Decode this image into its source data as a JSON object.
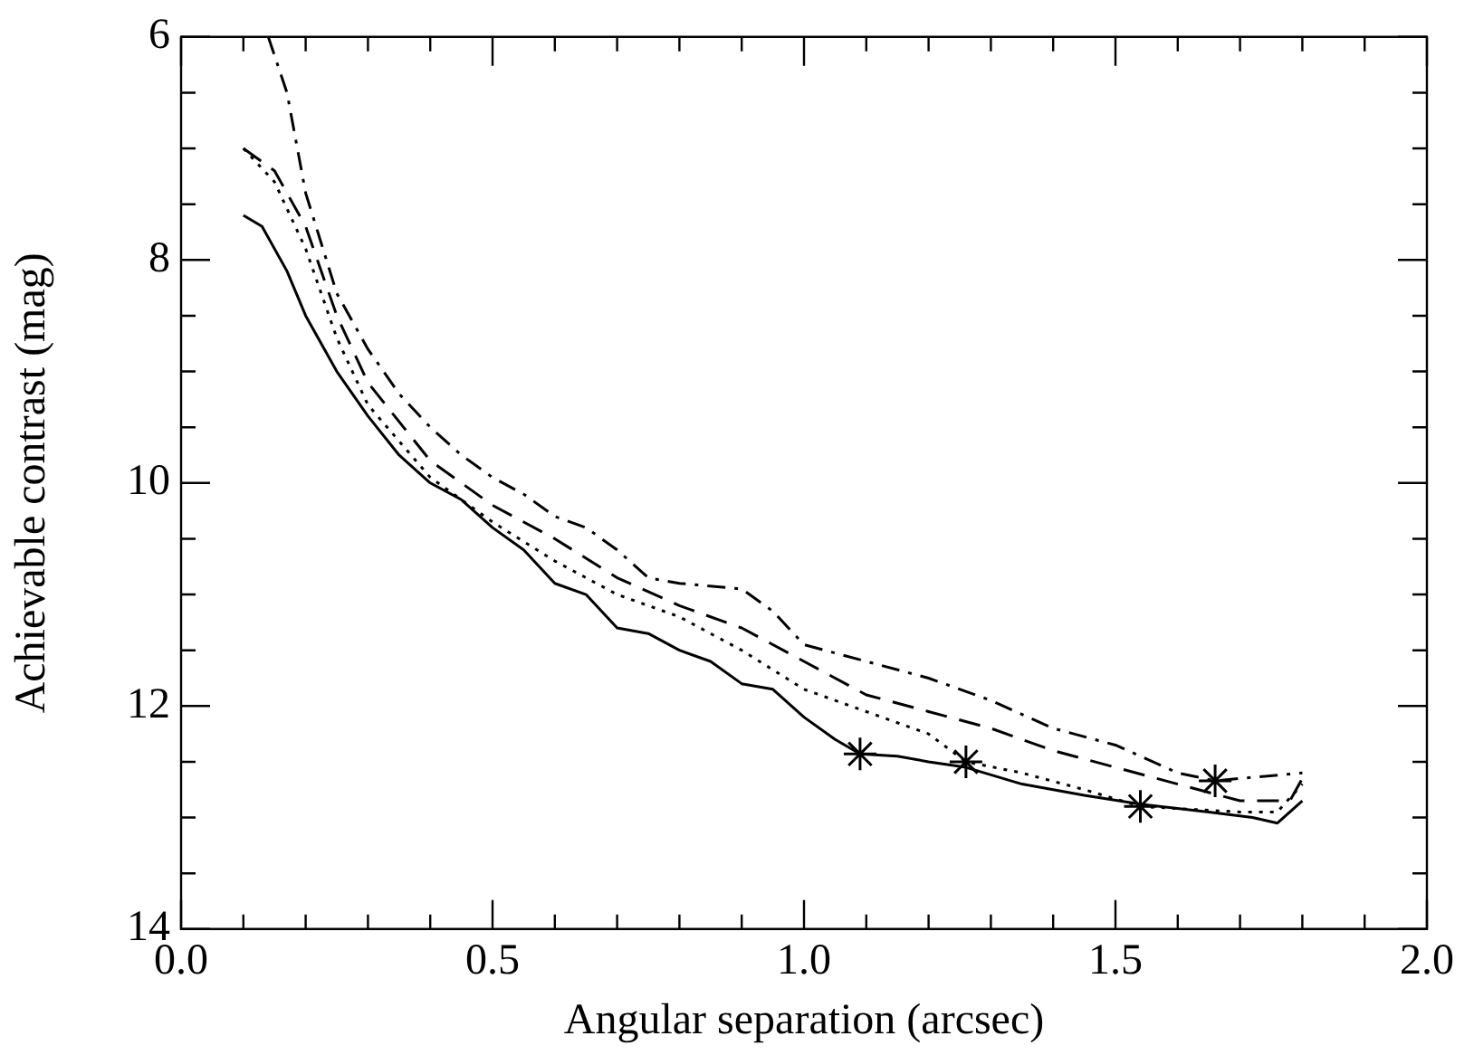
{
  "chart_data": {
    "type": "line",
    "xlabel": "Angular separation (arcsec)",
    "ylabel": "Achievable contrast (mag)",
    "xlim": [
      0,
      2
    ],
    "ylim": [
      14,
      6
    ],
    "xticks": [
      {
        "value": 0,
        "label": "0.0"
      },
      {
        "value": 0.1,
        "label": null
      },
      {
        "value": 0.2,
        "label": null
      },
      {
        "value": 0.3,
        "label": null
      },
      {
        "value": 0.4,
        "label": null
      },
      {
        "value": 0.5,
        "label": "0.5"
      },
      {
        "value": 0.6,
        "label": null
      },
      {
        "value": 0.7,
        "label": null
      },
      {
        "value": 0.8,
        "label": null
      },
      {
        "value": 0.9,
        "label": null
      },
      {
        "value": 1,
        "label": "1.0"
      },
      {
        "value": 1.1,
        "label": null
      },
      {
        "value": 1.2,
        "label": null
      },
      {
        "value": 1.3,
        "label": null
      },
      {
        "value": 1.4,
        "label": null
      },
      {
        "value": 1.5,
        "label": "1.5"
      },
      {
        "value": 1.6,
        "label": null
      },
      {
        "value": 1.7,
        "label": null
      },
      {
        "value": 1.8,
        "label": null
      },
      {
        "value": 1.9,
        "label": null
      },
      {
        "value": 2,
        "label": "2.0"
      }
    ],
    "yticks": [
      {
        "value": 6,
        "label": "6"
      },
      {
        "value": 6.5,
        "label": null
      },
      {
        "value": 7,
        "label": null
      },
      {
        "value": 7.5,
        "label": null
      },
      8,
      {
        "value": 8.5,
        "label": null
      },
      {
        "value": 9,
        "label": null
      },
      {
        "value": 9.5,
        "label": null
      },
      10,
      {
        "value": 10.5,
        "label": null
      },
      {
        "value": 11,
        "label": null
      },
      {
        "value": 11.5,
        "label": null
      },
      12,
      {
        "value": 12.5,
        "label": null
      },
      {
        "value": 13,
        "label": null
      },
      {
        "value": 13.5,
        "label": null
      },
      14
    ],
    "grid": false,
    "legend": false,
    "marker": "none",
    "series": [
      {
        "color": "#000000",
        "line_style": "solid",
        "x": [
          0.1,
          0.13,
          0.17,
          0.2,
          0.25,
          0.3,
          0.35,
          0.4,
          0.45,
          0.5,
          0.55,
          0.6,
          0.65,
          0.7,
          0.75,
          0.8,
          0.85,
          0.9,
          0.95,
          1.0,
          1.05,
          1.09,
          1.15,
          1.2,
          1.26,
          1.35,
          1.45,
          1.54,
          1.65,
          1.72,
          1.76,
          1.8
        ],
        "values": [
          7.6,
          7.7,
          8.1,
          8.5,
          9.0,
          9.4,
          9.75,
          10.0,
          10.15,
          10.4,
          10.6,
          10.9,
          11.0,
          11.3,
          11.35,
          11.5,
          11.6,
          11.8,
          11.85,
          12.1,
          12.3,
          12.43,
          12.45,
          12.5,
          12.55,
          12.7,
          12.8,
          12.88,
          12.95,
          13.0,
          13.05,
          12.85
        ]
      },
      {
        "color": "#000000",
        "line_style": "dashed",
        "x": [
          0.1,
          0.15,
          0.2,
          0.25,
          0.3,
          0.4,
          0.5,
          0.6,
          0.7,
          0.8,
          0.9,
          1.0,
          1.1,
          1.2,
          1.3,
          1.4,
          1.5,
          1.6,
          1.7,
          1.78,
          1.8
        ],
        "values": [
          7.0,
          7.2,
          7.7,
          8.5,
          9.1,
          9.8,
          10.2,
          10.5,
          10.85,
          11.1,
          11.3,
          11.6,
          11.9,
          12.05,
          12.2,
          12.4,
          12.55,
          12.7,
          12.85,
          12.85,
          12.65
        ]
      },
      {
        "color": "#000000",
        "line_style": "dotted",
        "x": [
          0.1,
          0.15,
          0.2,
          0.25,
          0.3,
          0.4,
          0.5,
          0.6,
          0.7,
          0.8,
          0.9,
          1.0,
          1.1,
          1.2,
          1.26,
          1.35,
          1.45,
          1.54,
          1.6,
          1.7,
          1.76,
          1.8
        ],
        "values": [
          7.0,
          7.3,
          7.9,
          8.7,
          9.3,
          9.95,
          10.35,
          10.7,
          11.0,
          11.2,
          11.5,
          11.85,
          12.05,
          12.25,
          12.5,
          12.6,
          12.75,
          12.9,
          12.92,
          12.95,
          12.95,
          12.7
        ]
      },
      {
        "color": "#000000",
        "line_style": "dashdot",
        "x": [
          0.14,
          0.17,
          0.2,
          0.25,
          0.3,
          0.35,
          0.4,
          0.45,
          0.5,
          0.55,
          0.6,
          0.65,
          0.7,
          0.75,
          0.8,
          0.9,
          0.95,
          1.0,
          1.1,
          1.2,
          1.3,
          1.4,
          1.5,
          1.6,
          1.66,
          1.7,
          1.8
        ],
        "values": [
          6.0,
          6.5,
          7.4,
          8.3,
          8.8,
          9.2,
          9.5,
          9.75,
          9.95,
          10.1,
          10.3,
          10.4,
          10.6,
          10.85,
          10.9,
          10.95,
          11.15,
          11.45,
          11.6,
          11.75,
          11.95,
          12.2,
          12.35,
          12.6,
          12.67,
          12.65,
          12.6
        ]
      },
      {
        "type": "scatter",
        "color": "#000000",
        "marker": "cross",
        "x": [
          1.09,
          1.26,
          1.54,
          1.66
        ],
        "values": [
          12.43,
          12.5,
          12.9,
          12.67
        ]
      }
    ]
  }
}
